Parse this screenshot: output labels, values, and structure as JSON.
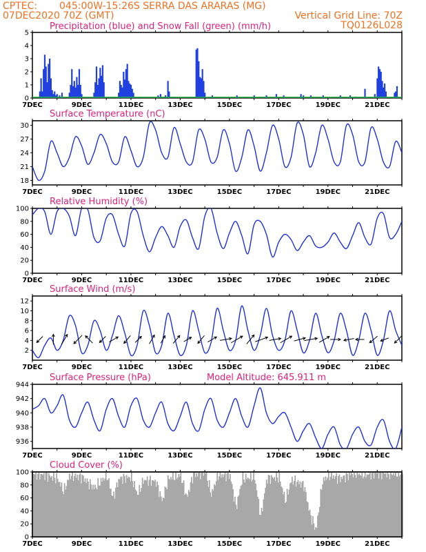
{
  "header": {
    "source": "CPTEC:",
    "location": "045:00W-15:26S  SERRA DAS ARARAS (MG)",
    "run": "07DEC2020 70Z (GMT)",
    "grid_note": "Vertical Grid Line: 70Z",
    "code": "TQ0126L028"
  },
  "x_axis": {
    "day_start": 7,
    "day_end": 22,
    "labels": [
      "7DEC",
      "9DEC",
      "11DEC",
      "13DEC",
      "15DEC",
      "17DEC",
      "19DEC",
      "21DEC"
    ],
    "label_days": [
      7,
      9,
      11,
      13,
      15,
      17,
      19,
      21
    ]
  },
  "chart_data": [
    {
      "id": "precip",
      "type": "bar",
      "title": "Precipitation (blue) and Snow Fall (green) (mm/h)",
      "ylim": [
        0,
        5
      ],
      "yticks": [
        0,
        1,
        2,
        3,
        4,
        5
      ],
      "series": [
        {
          "name": "Precipitation",
          "color": "#2040e0",
          "x": [
            7.3,
            7.35,
            7.4,
            7.45,
            7.5,
            7.55,
            7.6,
            7.65,
            7.7,
            7.75,
            7.8,
            7.85,
            7.9,
            7.95,
            8.0,
            8.1,
            8.2,
            8.5,
            8.55,
            8.6,
            8.65,
            8.7,
            8.75,
            8.8,
            8.85,
            8.9,
            8.95,
            9.0,
            9.5,
            9.55,
            9.6,
            9.65,
            9.7,
            9.75,
            9.8,
            9.85,
            9.9,
            10.5,
            10.55,
            10.6,
            10.65,
            10.7,
            10.75,
            10.8,
            10.85,
            10.9,
            10.95,
            11.0,
            11.05,
            11.1,
            12.1,
            12.2,
            12.4,
            12.5,
            12.55,
            13.65,
            13.7,
            13.75,
            13.8,
            13.85,
            13.9,
            13.95,
            14.0,
            14.3,
            15.3,
            16.0,
            16.5,
            16.9,
            17.2,
            17.9,
            18.0,
            18.3,
            18.8,
            19.5,
            19.9,
            20.1,
            20.5,
            20.9,
            21.0,
            21.05,
            21.1,
            21.15,
            21.2,
            21.25,
            21.3,
            21.35,
            21.7,
            21.75,
            21.8
          ],
          "y": [
            0.5,
            1.5,
            0.5,
            2.2,
            3.3,
            2.4,
            1.2,
            2.6,
            3.0,
            1.5,
            0.6,
            0.3,
            0.5,
            0.2,
            0.3,
            0.2,
            0.4,
            0.4,
            1.0,
            2.2,
            0.9,
            1.3,
            0.8,
            1.6,
            1.0,
            2.2,
            1.0,
            0.3,
            0.4,
            1.2,
            2.4,
            1.0,
            1.5,
            2.3,
            1.7,
            2.5,
            1.2,
            0.4,
            1.3,
            1.0,
            0.8,
            2.0,
            1.4,
            2.2,
            2.6,
            1.3,
            1.1,
            1.0,
            0.7,
            0.4,
            0.2,
            0.3,
            0.2,
            1.3,
            0.5,
            3.7,
            3.8,
            2.8,
            1.6,
            1.5,
            2.2,
            1.3,
            0.4,
            0.2,
            0.2,
            0.2,
            0.2,
            0.3,
            0.2,
            0.3,
            0.2,
            0.2,
            0.2,
            0.2,
            0.2,
            0.1,
            0.7,
            0.3,
            1.5,
            2.4,
            2.2,
            2.0,
            1.3,
            0.8,
            1.1,
            0.5,
            0.4,
            0.5,
            0.9
          ]
        },
        {
          "name": "Snow Fall",
          "color": "#20b040",
          "x": [],
          "y": []
        }
      ]
    },
    {
      "id": "temp",
      "type": "line",
      "title": "Surface Temperature (nC)",
      "ylim": [
        17,
        31
      ],
      "yticks": [
        18,
        21,
        24,
        27,
        30
      ],
      "x": [
        7,
        7.25,
        7.5,
        7.75,
        8,
        8.25,
        8.5,
        8.75,
        9,
        9.25,
        9.5,
        9.75,
        10,
        10.25,
        10.5,
        10.75,
        11,
        11.25,
        11.5,
        11.75,
        12,
        12.25,
        12.5,
        12.75,
        13,
        13.25,
        13.5,
        13.75,
        14,
        14.25,
        14.5,
        14.75,
        15,
        15.25,
        15.5,
        15.75,
        16,
        16.25,
        16.5,
        16.75,
        17,
        17.25,
        17.5,
        17.75,
        18,
        18.25,
        18.5,
        18.75,
        19,
        19.25,
        19.5,
        19.75,
        20,
        20.25,
        20.5,
        20.75,
        21,
        21.25,
        21.5,
        21.75,
        22
      ],
      "y": [
        21,
        18,
        20,
        26.5,
        24,
        21,
        23,
        27.5,
        25.5,
        21.5,
        24,
        28,
        26,
        22,
        22,
        27.5,
        24.5,
        21,
        23,
        30.5,
        29,
        24,
        23,
        29.5,
        26,
        22,
        22,
        29,
        27,
        22,
        23,
        29,
        26,
        20,
        23,
        29,
        25.5,
        20,
        24,
        30,
        27,
        21,
        23,
        30.5,
        28,
        21,
        24,
        30,
        27,
        22,
        22,
        30,
        28,
        22,
        22,
        29.5,
        27,
        22,
        21,
        26.5,
        24
      ]
    },
    {
      "id": "rh",
      "type": "line",
      "title": "Relative Humidity (%)",
      "ylim": [
        0,
        100
      ],
      "yticks": [
        0,
        20,
        40,
        60,
        80,
        100
      ],
      "x": [
        7,
        7.25,
        7.5,
        7.75,
        8,
        8.25,
        8.5,
        8.75,
        9,
        9.25,
        9.5,
        9.75,
        10,
        10.25,
        10.5,
        10.75,
        11,
        11.25,
        11.5,
        11.75,
        12,
        12.25,
        12.5,
        12.75,
        13,
        13.25,
        13.5,
        13.75,
        14,
        14.25,
        14.5,
        14.75,
        15,
        15.25,
        15.5,
        15.75,
        16,
        16.25,
        16.5,
        16.75,
        17,
        17.25,
        17.5,
        17.75,
        18,
        18.25,
        18.5,
        18.75,
        19,
        19.25,
        19.5,
        19.75,
        20,
        20.25,
        20.5,
        20.75,
        21,
        21.25,
        21.5,
        21.75,
        22
      ],
      "y": [
        90,
        100,
        95,
        60,
        95,
        100,
        88,
        58,
        100,
        98,
        55,
        50,
        85,
        90,
        60,
        42,
        92,
        95,
        58,
        33,
        55,
        72,
        58,
        40,
        72,
        82,
        55,
        38,
        88,
        100,
        62,
        38,
        62,
        80,
        58,
        30,
        75,
        80,
        60,
        25,
        48,
        60,
        52,
        35,
        48,
        58,
        42,
        40,
        48,
        62,
        48,
        38,
        58,
        78,
        55,
        45,
        85,
        92,
        55,
        60,
        80
      ]
    },
    {
      "id": "wind",
      "type": "line",
      "title": "Surface Wind (m/s)",
      "ylim": [
        0,
        13
      ],
      "yticks": [
        2,
        4,
        6,
        8,
        10,
        12
      ],
      "x": [
        7,
        7.25,
        7.5,
        7.75,
        8,
        8.25,
        8.5,
        8.75,
        9,
        9.25,
        9.5,
        9.75,
        10,
        10.25,
        10.5,
        10.75,
        11,
        11.25,
        11.5,
        11.75,
        12,
        12.25,
        12.5,
        12.75,
        13,
        13.25,
        13.5,
        13.75,
        14,
        14.25,
        14.5,
        14.75,
        15,
        15.25,
        15.5,
        15.75,
        16,
        16.25,
        16.5,
        16.75,
        17,
        17.25,
        17.5,
        17.75,
        18,
        18.25,
        18.5,
        18.75,
        19,
        19.25,
        19.5,
        19.75,
        20,
        20.25,
        20.5,
        20.75,
        21,
        21.25,
        21.5,
        21.75,
        22
      ],
      "y": [
        2,
        0.5,
        3,
        4.5,
        2,
        4,
        9,
        7,
        1.5,
        3,
        8,
        6,
        2,
        5,
        9,
        5.5,
        1,
        3,
        10,
        7,
        1.5,
        3,
        9.5,
        5,
        1,
        3,
        10,
        6,
        1.5,
        3.5,
        10.5,
        6,
        2,
        4,
        11,
        6,
        2,
        5,
        10.5,
        5,
        2,
        4,
        10,
        6,
        1.5,
        4,
        9.5,
        5,
        1.5,
        4,
        9.5,
        6,
        1,
        4,
        9.5,
        6,
        1,
        4,
        10,
        6,
        3
      ],
      "barbs": {
        "x": [
          7.3,
          7.85,
          8.3,
          8.85,
          9.3,
          9.85,
          10.3,
          10.85,
          11.3,
          11.85,
          12.3,
          12.85,
          13.3,
          13.85,
          14.3,
          14.85,
          15.3,
          15.85,
          16.3,
          16.85,
          17.3,
          17.85,
          18.3,
          18.85,
          19.3,
          19.85,
          20.3,
          20.85,
          21.3,
          21.85
        ],
        "dir_deg": [
          225,
          0,
          30,
          225,
          315,
          225,
          60,
          220,
          45,
          30,
          30,
          40,
          60,
          220,
          60,
          80,
          60,
          40,
          70,
          80,
          60,
          75,
          80,
          60,
          90,
          260,
          270,
          230,
          250,
          225
        ],
        "speed": [
          3,
          4,
          5,
          5,
          4,
          3,
          4,
          4,
          3,
          4,
          3,
          4,
          3,
          4,
          4,
          5,
          6,
          5,
          6,
          5,
          6,
          5,
          6,
          5,
          4,
          4,
          3,
          4,
          3,
          4
        ]
      }
    },
    {
      "id": "pres",
      "type": "line",
      "title": "Surface Pressure (hPa)",
      "note": "Model Altitude: 645.911 m",
      "ylim": [
        935,
        944
      ],
      "yticks": [
        936,
        938,
        940,
        942,
        944
      ],
      "x": [
        7,
        7.25,
        7.5,
        7.75,
        8,
        8.25,
        8.5,
        8.75,
        9,
        9.25,
        9.5,
        9.75,
        10,
        10.25,
        10.5,
        10.75,
        11,
        11.25,
        11.5,
        11.75,
        12,
        12.25,
        12.5,
        12.75,
        13,
        13.25,
        13.5,
        13.75,
        14,
        14.25,
        14.5,
        14.75,
        15,
        15.25,
        15.5,
        15.75,
        16,
        16.25,
        16.5,
        16.75,
        17,
        17.25,
        17.5,
        17.75,
        18,
        18.25,
        18.5,
        18.75,
        19,
        19.25,
        19.5,
        19.75,
        20,
        20.25,
        20.5,
        20.75,
        21,
        21.25,
        21.5,
        21.75,
        22
      ],
      "y": [
        940.5,
        941,
        942,
        940,
        941,
        942.5,
        939,
        938,
        940,
        941.5,
        939,
        937.5,
        940.5,
        942,
        939.5,
        938,
        941,
        942,
        939,
        938,
        940,
        941.5,
        938.5,
        937.5,
        939.5,
        941.5,
        938.5,
        937.5,
        940.5,
        942,
        939,
        938,
        940,
        942,
        939.5,
        938,
        941,
        943.5,
        940,
        938.5,
        939.5,
        940,
        938,
        936,
        937.5,
        938.5,
        936.5,
        935,
        937,
        938,
        935.5,
        935,
        937,
        938,
        936,
        935.5,
        938,
        939,
        936,
        935,
        938
      ]
    },
    {
      "id": "cloud",
      "type": "area",
      "title": "Cloud Cover (%)",
      "ylim": [
        0,
        100
      ],
      "yticks": [
        0,
        20,
        40,
        60,
        80,
        100
      ],
      "color": "#a8a8a8",
      "x": [
        7,
        7.5,
        8,
        8.25,
        8.5,
        9,
        9.5,
        10,
        10.25,
        10.5,
        11,
        11.25,
        11.5,
        12,
        12.25,
        12.5,
        13,
        13.25,
        13.5,
        14,
        14.25,
        14.5,
        15,
        15.25,
        15.5,
        16,
        16.25,
        16.5,
        17,
        17.25,
        17.5,
        18,
        18.25,
        18.5,
        18.75,
        19,
        19.5,
        20,
        20.5,
        21,
        21.5,
        22
      ],
      "y": [
        97,
        95,
        90,
        70,
        95,
        92,
        75,
        95,
        60,
        90,
        92,
        65,
        88,
        85,
        55,
        90,
        95,
        60,
        95,
        100,
        65,
        95,
        95,
        45,
        90,
        92,
        30,
        90,
        92,
        55,
        88,
        80,
        35,
        10,
        85,
        95,
        90,
        98,
        96,
        98,
        97,
        98
      ]
    }
  ]
}
